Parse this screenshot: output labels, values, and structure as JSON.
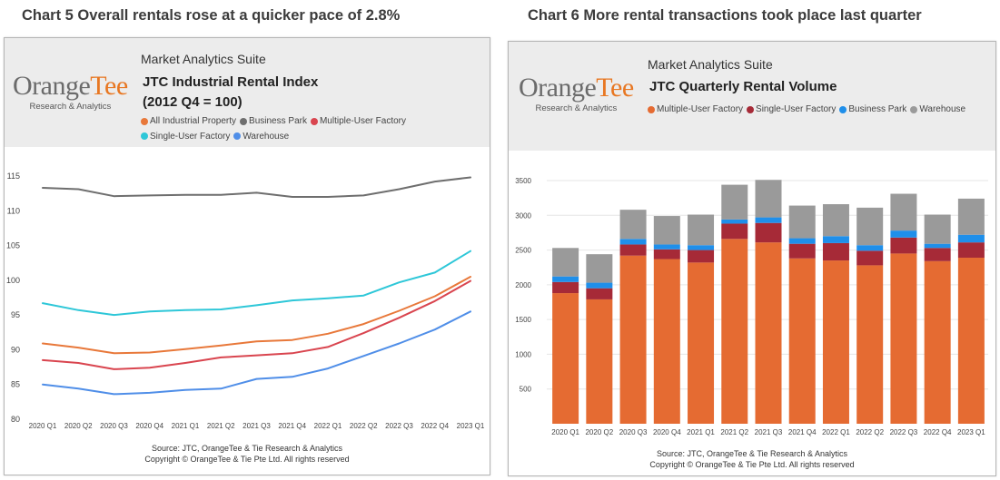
{
  "colors": {
    "header_bg": "#ececec",
    "logo_orange": "#e87722",
    "logo_grey": "#6b6b6b"
  },
  "charts": [
    {
      "heading": "Chart 5 Overall rentals rose at a quicker pace of 2.8%",
      "suite": "Market Analytics Suite",
      "logo": {
        "word_left": "Orange",
        "word_right": "Tee",
        "tagline": "Research & Analytics"
      },
      "title_line1": "JTC Industrial Rental Index",
      "title_line2": "(2012 Q4 = 100)",
      "source": "Source: JTC, OrangeTee & Tie Research & Analytics",
      "copyright": "Copyright © OrangeTee & Tie Pte Ltd. All rights reserved"
    },
    {
      "heading": "Chart 6 More rental transactions took place last quarter",
      "suite": "Market Analytics Suite",
      "logo": {
        "word_left": "Orange",
        "word_right": "Tee",
        "tagline": "Research & Analytics"
      },
      "title_line1": "JTC Quarterly Rental Volume",
      "source": "Source: JTC, OrangeTee & Tie Research & Analytics",
      "copyright": "Copyright © OrangeTee & Tie Pte Ltd. All rights reserved"
    }
  ],
  "chart_data": [
    {
      "type": "line",
      "title": "JTC Industrial Rental Index",
      "subtitle": "(2012 Q4 = 100)",
      "x": [
        "2020 Q1",
        "2020 Q2",
        "2020 Q3",
        "2020 Q4",
        "2021 Q1",
        "2021 Q2",
        "2021 Q3",
        "2021 Q4",
        "2022 Q1",
        "2022 Q2",
        "2022 Q3",
        "2022 Q4",
        "2023 Q1"
      ],
      "ylim": [
        80,
        115
      ],
      "yticks": [
        80,
        85,
        90,
        95,
        100,
        105,
        110,
        115
      ],
      "grid": false,
      "legend": "top",
      "series": [
        {
          "name": "All Industrial Property",
          "color": "#e8783a",
          "values": [
            90.9,
            90.3,
            89.5,
            89.6,
            90.1,
            90.6,
            91.2,
            91.4,
            92.3,
            93.7,
            95.6,
            97.7,
            100.5
          ]
        },
        {
          "name": "Business Park",
          "color": "#6e6e6e",
          "values": [
            113.3,
            113.1,
            112.1,
            112.2,
            112.3,
            112.3,
            112.6,
            112.0,
            112.0,
            112.2,
            113.1,
            114.2,
            114.8
          ]
        },
        {
          "name": "Multiple-User Factory",
          "color": "#d9454f",
          "values": [
            88.5,
            88.1,
            87.2,
            87.4,
            88.1,
            88.9,
            89.2,
            89.5,
            90.4,
            92.4,
            94.6,
            97.0,
            99.9
          ]
        },
        {
          "name": "Single-User Factory",
          "color": "#2ec7d8",
          "values": [
            96.7,
            95.7,
            95.0,
            95.5,
            95.7,
            95.8,
            96.4,
            97.1,
            97.4,
            97.8,
            99.7,
            101.1,
            104.2
          ]
        },
        {
          "name": "Warehouse",
          "color": "#4f8ee8",
          "values": [
            85.0,
            84.4,
            83.6,
            83.8,
            84.2,
            84.4,
            85.8,
            86.1,
            87.3,
            89.1,
            90.9,
            92.9,
            95.5
          ]
        }
      ]
    },
    {
      "type": "bar",
      "stacked": true,
      "title": "JTC Quarterly Rental Volume",
      "categories": [
        "2020 Q1",
        "2020 Q2",
        "2020 Q3",
        "2020 Q4",
        "2021 Q1",
        "2021 Q2",
        "2021 Q3",
        "2021 Q4",
        "2022 Q1",
        "2022 Q2",
        "2022 Q3",
        "2022 Q4",
        "2023 Q1"
      ],
      "ylim": [
        0,
        3500
      ],
      "yticks": [
        500,
        1000,
        1500,
        2000,
        2500,
        3000,
        3500
      ],
      "grid": true,
      "legend": "top",
      "series": [
        {
          "name": "Multiple-User Factory",
          "color": "#e56b32",
          "values": [
            1880,
            1790,
            2420,
            2370,
            2320,
            2660,
            2610,
            2380,
            2350,
            2280,
            2450,
            2340,
            2390
          ]
        },
        {
          "name": "Single-User Factory",
          "color": "#a62a37",
          "values": [
            160,
            160,
            160,
            140,
            180,
            220,
            280,
            210,
            250,
            210,
            230,
            190,
            220
          ]
        },
        {
          "name": "Business Park",
          "color": "#1f8fea",
          "values": [
            80,
            80,
            80,
            70,
            70,
            60,
            80,
            80,
            100,
            80,
            100,
            60,
            110
          ]
        },
        {
          "name": "Warehouse",
          "color": "#9a9a9a",
          "values": [
            410,
            410,
            420,
            410,
            440,
            500,
            540,
            470,
            460,
            540,
            530,
            420,
            520
          ]
        }
      ]
    }
  ]
}
